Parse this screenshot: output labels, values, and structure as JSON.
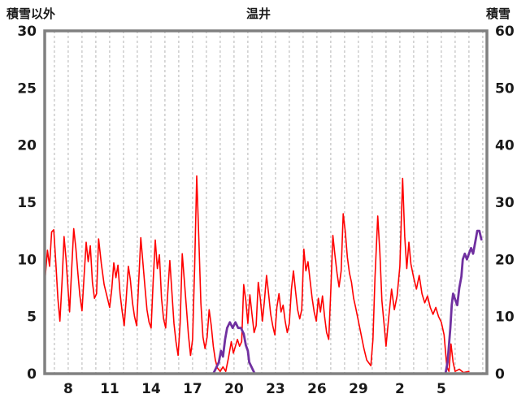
{
  "title": "温井",
  "left_axis_label": "積雪以外",
  "right_axis_label": "積雪",
  "colors": {
    "background": "#ffffff",
    "frame": "#808080",
    "grid": "#b3b3b3",
    "text": "#1a1a1a",
    "red_series": "#ff0000",
    "purple_series": "#7030a0"
  },
  "chart_data": {
    "type": "line",
    "title": "温井",
    "left_axis": {
      "label": "積雪以外",
      "lim": [
        0,
        30
      ],
      "ticks": [
        0,
        5,
        10,
        15,
        20,
        25,
        30
      ]
    },
    "right_axis": {
      "label": "積雪",
      "lim": [
        0,
        60
      ],
      "ticks": [
        0,
        10,
        20,
        30,
        40,
        50,
        60
      ]
    },
    "x_axis": {
      "range": [
        6.3,
        38.3
      ],
      "tick_positions": [
        8,
        11,
        14,
        17,
        20,
        23,
        26,
        29,
        32,
        35
      ],
      "tick_labels": [
        "8",
        "11",
        "14",
        "17",
        "20",
        "23",
        "26",
        "29",
        "2",
        "5"
      ],
      "grid_interval_days": 1,
      "grid_style": "dashed-vertical"
    },
    "legend": "none",
    "series": [
      {
        "name": "積雪以外",
        "axis": "left",
        "color": "#ff0000",
        "width": 1.6,
        "points": [
          [
            6.35,
            8.6
          ],
          [
            6.5,
            10.8
          ],
          [
            6.65,
            9.4
          ],
          [
            6.8,
            12.4
          ],
          [
            6.95,
            12.6
          ],
          [
            7.1,
            9.8
          ],
          [
            7.25,
            6.6
          ],
          [
            7.4,
            4.6
          ],
          [
            7.55,
            8.0
          ],
          [
            7.7,
            12.0
          ],
          [
            7.85,
            10.0
          ],
          [
            8.0,
            7.2
          ],
          [
            8.1,
            5.4
          ],
          [
            8.25,
            9.2
          ],
          [
            8.4,
            12.7
          ],
          [
            8.55,
            11.0
          ],
          [
            8.7,
            8.8
          ],
          [
            8.85,
            6.8
          ],
          [
            9.0,
            5.5
          ],
          [
            9.15,
            8.6
          ],
          [
            9.3,
            11.5
          ],
          [
            9.45,
            9.8
          ],
          [
            9.6,
            11.2
          ],
          [
            9.75,
            8.0
          ],
          [
            9.9,
            6.6
          ],
          [
            10.05,
            7.0
          ],
          [
            10.2,
            11.8
          ],
          [
            10.4,
            9.6
          ],
          [
            10.6,
            7.8
          ],
          [
            10.8,
            6.8
          ],
          [
            11.0,
            5.8
          ],
          [
            11.15,
            7.4
          ],
          [
            11.3,
            9.7
          ],
          [
            11.45,
            8.4
          ],
          [
            11.6,
            9.5
          ],
          [
            11.75,
            7.0
          ],
          [
            11.9,
            5.5
          ],
          [
            12.05,
            4.2
          ],
          [
            12.2,
            6.6
          ],
          [
            12.35,
            9.4
          ],
          [
            12.5,
            8.2
          ],
          [
            12.65,
            6.2
          ],
          [
            12.8,
            5.0
          ],
          [
            12.95,
            4.2
          ],
          [
            13.1,
            8.0
          ],
          [
            13.25,
            11.9
          ],
          [
            13.4,
            9.8
          ],
          [
            13.55,
            7.6
          ],
          [
            13.7,
            5.6
          ],
          [
            13.85,
            4.5
          ],
          [
            14.0,
            4.0
          ],
          [
            14.15,
            8.2
          ],
          [
            14.3,
            11.7
          ],
          [
            14.45,
            9.2
          ],
          [
            14.6,
            10.4
          ],
          [
            14.75,
            6.6
          ],
          [
            14.9,
            4.8
          ],
          [
            15.05,
            4.0
          ],
          [
            15.2,
            7.0
          ],
          [
            15.35,
            9.9
          ],
          [
            15.5,
            7.2
          ],
          [
            15.65,
            4.4
          ],
          [
            15.8,
            2.8
          ],
          [
            15.95,
            1.6
          ],
          [
            16.1,
            4.4
          ],
          [
            16.25,
            10.5
          ],
          [
            16.4,
            8.2
          ],
          [
            16.55,
            5.8
          ],
          [
            16.7,
            3.4
          ],
          [
            16.85,
            1.6
          ],
          [
            17.0,
            3.0
          ],
          [
            17.15,
            9.2
          ],
          [
            17.3,
            17.3
          ],
          [
            17.45,
            11.8
          ],
          [
            17.6,
            6.2
          ],
          [
            17.75,
            3.2
          ],
          [
            17.9,
            2.2
          ],
          [
            18.05,
            3.2
          ],
          [
            18.2,
            5.6
          ],
          [
            18.35,
            4.2
          ],
          [
            18.5,
            2.4
          ],
          [
            18.65,
            1.2
          ],
          [
            18.8,
            0.5
          ],
          [
            19.0,
            0.2
          ],
          [
            19.2,
            0.6
          ],
          [
            19.4,
            0.2
          ],
          [
            19.6,
            1.4
          ],
          [
            19.8,
            2.8
          ],
          [
            19.95,
            1.8
          ],
          [
            20.1,
            2.4
          ],
          [
            20.25,
            3.0
          ],
          [
            20.4,
            2.4
          ],
          [
            20.55,
            2.8
          ],
          [
            20.7,
            7.8
          ],
          [
            20.85,
            6.4
          ],
          [
            21.0,
            4.4
          ],
          [
            21.15,
            6.9
          ],
          [
            21.3,
            5.2
          ],
          [
            21.45,
            3.6
          ],
          [
            21.6,
            4.2
          ],
          [
            21.75,
            8.0
          ],
          [
            21.9,
            6.6
          ],
          [
            22.05,
            4.6
          ],
          [
            22.2,
            6.4
          ],
          [
            22.35,
            8.6
          ],
          [
            22.5,
            7.0
          ],
          [
            22.65,
            5.2
          ],
          [
            22.8,
            4.2
          ],
          [
            22.95,
            3.4
          ],
          [
            23.1,
            5.8
          ],
          [
            23.25,
            7.0
          ],
          [
            23.4,
            5.4
          ],
          [
            23.55,
            6.0
          ],
          [
            23.7,
            4.6
          ],
          [
            23.85,
            3.6
          ],
          [
            24.0,
            4.4
          ],
          [
            24.15,
            7.4
          ],
          [
            24.3,
            9.0
          ],
          [
            24.45,
            7.2
          ],
          [
            24.6,
            5.6
          ],
          [
            24.75,
            4.8
          ],
          [
            24.9,
            5.6
          ],
          [
            25.05,
            10.9
          ],
          [
            25.2,
            9.0
          ],
          [
            25.35,
            9.8
          ],
          [
            25.5,
            8.2
          ],
          [
            25.65,
            6.6
          ],
          [
            25.8,
            5.4
          ],
          [
            25.95,
            4.6
          ],
          [
            26.1,
            6.6
          ],
          [
            26.25,
            5.4
          ],
          [
            26.4,
            6.8
          ],
          [
            26.55,
            5.0
          ],
          [
            26.7,
            3.6
          ],
          [
            26.85,
            3.0
          ],
          [
            27.0,
            7.2
          ],
          [
            27.15,
            12.1
          ],
          [
            27.3,
            10.4
          ],
          [
            27.45,
            8.8
          ],
          [
            27.6,
            7.6
          ],
          [
            27.75,
            9.0
          ],
          [
            27.9,
            14.0
          ],
          [
            28.05,
            12.4
          ],
          [
            28.2,
            10.2
          ],
          [
            28.35,
            8.8
          ],
          [
            28.5,
            8.0
          ],
          [
            28.65,
            6.6
          ],
          [
            28.8,
            5.8
          ],
          [
            29.0,
            4.6
          ],
          [
            29.2,
            3.4
          ],
          [
            29.4,
            2.2
          ],
          [
            29.6,
            1.2
          ],
          [
            29.9,
            0.7
          ],
          [
            30.05,
            3.0
          ],
          [
            30.2,
            8.4
          ],
          [
            30.4,
            13.8
          ],
          [
            30.55,
            10.6
          ],
          [
            30.7,
            6.4
          ],
          [
            30.85,
            4.4
          ],
          [
            31.0,
            2.4
          ],
          [
            31.2,
            5.0
          ],
          [
            31.4,
            7.4
          ],
          [
            31.6,
            5.6
          ],
          [
            31.8,
            6.8
          ],
          [
            32.0,
            9.4
          ],
          [
            32.2,
            17.1
          ],
          [
            32.35,
            12.0
          ],
          [
            32.5,
            9.2
          ],
          [
            32.65,
            11.5
          ],
          [
            32.8,
            9.6
          ],
          [
            33.0,
            8.4
          ],
          [
            33.2,
            7.4
          ],
          [
            33.4,
            8.6
          ],
          [
            33.6,
            7.0
          ],
          [
            33.8,
            6.2
          ],
          [
            34.0,
            6.8
          ],
          [
            34.2,
            5.8
          ],
          [
            34.4,
            5.2
          ],
          [
            34.6,
            5.8
          ],
          [
            34.8,
            5.0
          ],
          [
            35.0,
            4.5
          ],
          [
            35.2,
            3.4
          ],
          [
            35.4,
            0.6
          ],
          [
            35.55,
            0.2
          ],
          [
            35.7,
            2.6
          ],
          [
            35.85,
            1.0
          ],
          [
            36.0,
            0.2
          ],
          [
            36.3,
            0.4
          ],
          [
            36.6,
            0.1
          ],
          [
            37.0,
            0.2
          ]
        ]
      },
      {
        "name": "積雪",
        "axis": "right",
        "color": "#7030a0",
        "width": 2.8,
        "points": [
          [
            6.35,
            0
          ],
          [
            18.5,
            0
          ],
          [
            18.7,
            1
          ],
          [
            18.9,
            2
          ],
          [
            19.05,
            4
          ],
          [
            19.2,
            3
          ],
          [
            19.35,
            6
          ],
          [
            19.5,
            8
          ],
          [
            19.7,
            9
          ],
          [
            19.9,
            8
          ],
          [
            20.1,
            9
          ],
          [
            20.3,
            8
          ],
          [
            20.5,
            8
          ],
          [
            20.7,
            7
          ],
          [
            20.85,
            5
          ],
          [
            21.0,
            4
          ],
          [
            21.1,
            2
          ],
          [
            21.3,
            1
          ],
          [
            21.5,
            0
          ],
          [
            35.3,
            0
          ],
          [
            35.45,
            2
          ],
          [
            35.55,
            5
          ],
          [
            35.65,
            8
          ],
          [
            35.75,
            12
          ],
          [
            35.85,
            14
          ],
          [
            36.0,
            13
          ],
          [
            36.15,
            12
          ],
          [
            36.3,
            15
          ],
          [
            36.45,
            17
          ],
          [
            36.55,
            20
          ],
          [
            36.7,
            21
          ],
          [
            36.85,
            20
          ],
          [
            37.0,
            21
          ],
          [
            37.15,
            22
          ],
          [
            37.3,
            21
          ],
          [
            37.45,
            23
          ],
          [
            37.6,
            25
          ],
          [
            37.75,
            25
          ],
          [
            37.9,
            23.5
          ]
        ]
      }
    ]
  }
}
